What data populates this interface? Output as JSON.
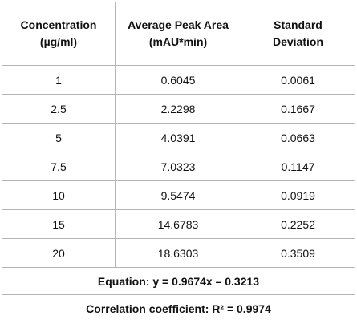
{
  "table": {
    "header": [
      "Concentration (µg/ml)",
      "Average Peak Area (mAU*min)",
      "Standard Deviation"
    ],
    "rows": [
      [
        "1",
        "0.6045",
        "0.0061"
      ],
      [
        "2.5",
        "2.2298",
        "0.1667"
      ],
      [
        "5",
        "4.0391",
        "0.0663"
      ],
      [
        "7.5",
        "7.0323",
        "0.1147"
      ],
      [
        "10",
        "9.5474",
        "0.0919"
      ],
      [
        "15",
        "14.6783",
        "0.2252"
      ],
      [
        "20",
        "18.6303",
        "0.3509"
      ]
    ],
    "footer": [
      "Equation: y = 0.9674x – 0.3213",
      "Correlation coefficient: R² = 0.9974"
    ]
  }
}
